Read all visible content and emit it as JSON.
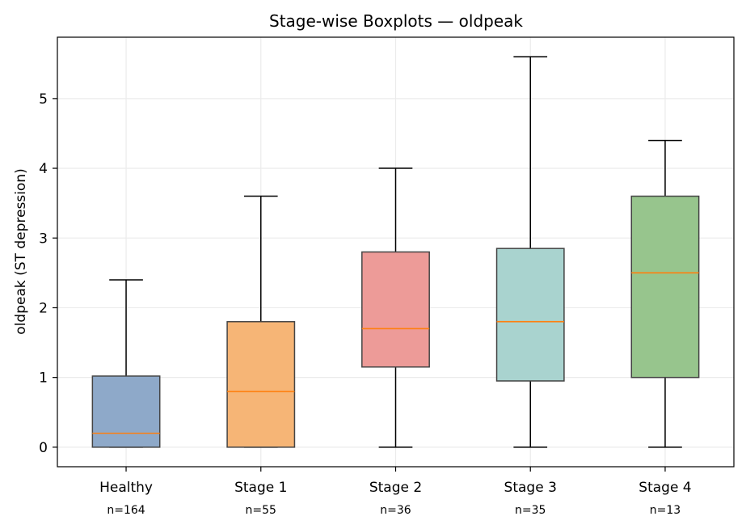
{
  "chart_data": {
    "type": "boxplot",
    "title": "Stage-wise Boxplots — oldpeak",
    "ylabel": "oldpeak (ST depression)",
    "xlabel": "",
    "ylim": [
      -0.28,
      5.88
    ],
    "yticks": [
      0,
      1,
      2,
      3,
      4,
      5
    ],
    "grid": true,
    "categories": [
      "Healthy",
      "Stage 1",
      "Stage 2",
      "Stage 3",
      "Stage 4"
    ],
    "counts": [
      "n=164",
      "n=55",
      "n=36",
      "n=35",
      "n=13"
    ],
    "boxes": [
      {
        "whisker_low": 0,
        "q1": 0,
        "median": 0.2,
        "q3": 1.02,
        "whisker_high": 2.4,
        "color": "#8ea9c9"
      },
      {
        "whisker_low": 0,
        "q1": 0,
        "median": 0.8,
        "q3": 1.8,
        "whisker_high": 3.6,
        "color": "#f6b576"
      },
      {
        "whisker_low": 0,
        "q1": 1.15,
        "median": 1.7,
        "q3": 2.8,
        "whisker_high": 4.0,
        "color": "#ed9b98"
      },
      {
        "whisker_low": 0,
        "q1": 0.95,
        "median": 1.8,
        "q3": 2.85,
        "whisker_high": 5.6,
        "color": "#a9d3cf"
      },
      {
        "whisker_low": 0,
        "q1": 1.0,
        "median": 2.5,
        "q3": 3.6,
        "whisker_high": 4.4,
        "color": "#97c58d"
      }
    ],
    "median_color": "#ff7f0e"
  }
}
